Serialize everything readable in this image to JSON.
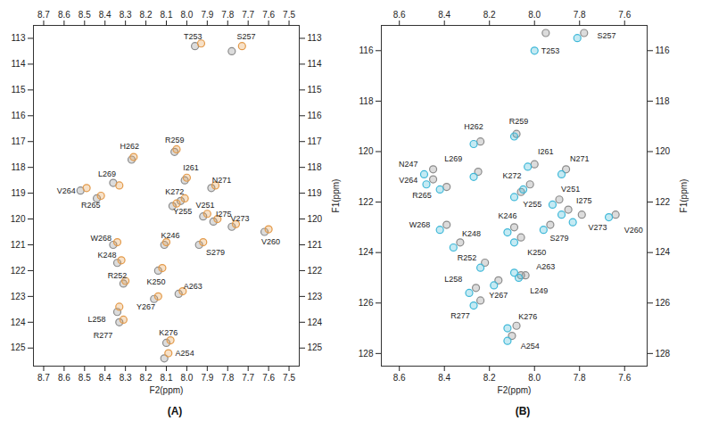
{
  "chart_data": [
    {
      "type": "scatter",
      "title": "(A)",
      "x_label": "F2(ppm)",
      "y_label": "F1(ppm)",
      "xlim": [
        8.75,
        7.45
      ],
      "xticks": [
        8.7,
        8.6,
        8.5,
        8.4,
        8.3,
        8.2,
        8.1,
        {
          "value": 8,
          "label": "8.0"
        },
        7.9,
        7.8,
        7.7,
        7.6,
        7.5
      ],
      "ylim": [
        112.5,
        125.7
      ],
      "yticks": [
        113,
        114,
        115,
        116,
        117,
        118,
        119,
        120,
        121,
        122,
        123,
        124,
        125
      ],
      "series": [
        {
          "color": "#8c8c8c",
          "x": [
            7.96,
            7.78,
            8.27,
            8.06,
            8.01,
            7.88,
            8.36,
            8.52,
            8.44,
            8.03,
            8.07,
            7.92,
            7.87,
            7.78,
            7.62,
            7.94,
            8.36,
            8.11,
            8.34,
            8.31,
            8.14,
            8.04,
            8.16,
            8.34,
            8.33,
            8.1,
            8.11
          ],
          "y": [
            113.3,
            113.5,
            117.7,
            117.4,
            118.5,
            118.8,
            118.6,
            118.9,
            119.2,
            119.3,
            119.5,
            119.9,
            120.1,
            120.3,
            120.5,
            121.0,
            121.0,
            121.0,
            121.7,
            122.5,
            122.0,
            122.9,
            123.1,
            123.6,
            124.0,
            124.8,
            125.4
          ]
        },
        {
          "color": "#e39a4a",
          "x": [
            7.93,
            7.73,
            8.26,
            8.05,
            8.0,
            7.86,
            8.33,
            8.49,
            8.42,
            8.01,
            8.05,
            7.9,
            7.85,
            7.76,
            7.6,
            7.92,
            8.34,
            8.1,
            8.32,
            8.3,
            8.12,
            8.02,
            8.14,
            8.33,
            8.31,
            8.08,
            8.09
          ],
          "y": [
            113.2,
            113.3,
            117.6,
            117.3,
            118.4,
            118.7,
            118.7,
            118.8,
            119.1,
            119.2,
            119.4,
            119.8,
            120.0,
            120.2,
            120.4,
            120.9,
            120.9,
            120.9,
            121.6,
            122.4,
            121.9,
            122.8,
            123.0,
            123.4,
            123.9,
            124.7,
            125.2
          ]
        }
      ],
      "annotations": [
        {
          "text": "T253",
          "x": 7.97,
          "y": 112.95
        },
        {
          "text": "S257",
          "x": 7.71,
          "y": 112.95
        },
        {
          "text": "H262",
          "x": 8.28,
          "y": 117.2
        },
        {
          "text": "R259",
          "x": 8.06,
          "y": 116.95
        },
        {
          "text": "I261",
          "x": 7.98,
          "y": 118.0
        },
        {
          "text": "N271",
          "x": 7.83,
          "y": 118.5
        },
        {
          "text": "L269",
          "x": 8.39,
          "y": 118.25
        },
        {
          "text": "V264",
          "x": 8.59,
          "y": 118.9
        },
        {
          "text": "R265",
          "x": 8.47,
          "y": 119.45
        },
        {
          "text": "K272",
          "x": 8.06,
          "y": 118.95
        },
        {
          "text": "Y255",
          "x": 8.02,
          "y": 119.7
        },
        {
          "text": "V251",
          "x": 7.91,
          "y": 119.45
        },
        {
          "text": "I275",
          "x": 7.82,
          "y": 119.8
        },
        {
          "text": "V273",
          "x": 7.74,
          "y": 120.0
        },
        {
          "text": "V260",
          "x": 7.59,
          "y": 120.9
        },
        {
          "text": "S279",
          "x": 7.86,
          "y": 121.3
        },
        {
          "text": "W268",
          "x": 8.42,
          "y": 120.75
        },
        {
          "text": "K246",
          "x": 8.08,
          "y": 120.65
        },
        {
          "text": "K248",
          "x": 8.39,
          "y": 121.4
        },
        {
          "text": "R252",
          "x": 8.34,
          "y": 122.2
        },
        {
          "text": "K250",
          "x": 8.15,
          "y": 122.45
        },
        {
          "text": "A263",
          "x": 7.97,
          "y": 122.6
        },
        {
          "text": "Y267",
          "x": 8.2,
          "y": 123.4
        },
        {
          "text": "L258",
          "x": 8.44,
          "y": 123.9
        },
        {
          "text": "R277",
          "x": 8.41,
          "y": 124.5
        },
        {
          "text": "K276",
          "x": 8.09,
          "y": 124.4
        },
        {
          "text": "A254",
          "x": 8.01,
          "y": 125.2
        }
      ]
    },
    {
      "type": "scatter",
      "title": "(B)",
      "x_label": "F2(ppm)",
      "y_label": "F1(ppm)",
      "xlim": [
        8.68,
        7.5
      ],
      "xticks": [
        8.6,
        8.4,
        8.2,
        {
          "value": 8,
          "label": "8.0"
        },
        7.8,
        7.6
      ],
      "ylim": [
        115,
        128.5
      ],
      "yticks": [
        116,
        118,
        120,
        122,
        124,
        126,
        128
      ],
      "series": [
        {
          "color": "#8c8c8c",
          "x": [
            7.95,
            7.78,
            8.24,
            8.08,
            8.45,
            8.25,
            8.45,
            8.39,
            8.0,
            7.86,
            8.02,
            8.06,
            7.89,
            7.85,
            7.79,
            7.64,
            8.39,
            8.09,
            8.33,
            8.06,
            7.93,
            8.22,
            8.06,
            8.04,
            8.26,
            8.16,
            8.24,
            8.08,
            8.1
          ],
          "y": [
            115.3,
            115.3,
            119.6,
            119.3,
            120.7,
            120.8,
            121.1,
            121.4,
            120.5,
            120.7,
            121.3,
            121.6,
            121.9,
            122.3,
            122.5,
            122.5,
            122.9,
            123.0,
            123.6,
            123.4,
            122.9,
            124.4,
            124.9,
            124.9,
            125.4,
            125.1,
            125.9,
            126.9,
            127.3
          ]
        },
        {
          "color": "#3fb8d8",
          "x": [
            8.0,
            7.81,
            8.27,
            8.09,
            8.49,
            8.27,
            8.48,
            8.42,
            8.03,
            7.88,
            8.05,
            8.09,
            7.92,
            7.88,
            7.83,
            7.67,
            8.42,
            8.12,
            8.36,
            8.09,
            7.96,
            8.24,
            8.09,
            8.07,
            8.29,
            8.18,
            8.27,
            8.12,
            8.12
          ],
          "y": [
            116.0,
            115.5,
            119.7,
            119.4,
            120.9,
            121.0,
            121.3,
            121.5,
            120.6,
            120.9,
            121.5,
            121.8,
            122.1,
            122.5,
            122.8,
            122.6,
            123.1,
            123.2,
            123.8,
            123.6,
            123.1,
            124.6,
            124.8,
            125.0,
            125.6,
            125.3,
            126.1,
            127.0,
            127.5
          ]
        }
      ],
      "annotations": [
        {
          "text": "T253",
          "x": 7.93,
          "y": 116.0
        },
        {
          "text": "S257",
          "x": 7.68,
          "y": 115.4
        },
        {
          "text": "H262",
          "x": 8.27,
          "y": 119.0
        },
        {
          "text": "R259",
          "x": 8.07,
          "y": 118.8
        },
        {
          "text": "N247",
          "x": 8.56,
          "y": 120.5
        },
        {
          "text": "L269",
          "x": 8.36,
          "y": 120.3
        },
        {
          "text": "V264",
          "x": 8.56,
          "y": 121.15
        },
        {
          "text": "R265",
          "x": 8.5,
          "y": 121.75
        },
        {
          "text": "I261",
          "x": 7.95,
          "y": 120.0
        },
        {
          "text": "N271",
          "x": 7.8,
          "y": 120.3
        },
        {
          "text": "K272",
          "x": 8.1,
          "y": 120.95
        },
        {
          "text": "Y255",
          "x": 8.01,
          "y": 122.1
        },
        {
          "text": "V251",
          "x": 7.84,
          "y": 121.5
        },
        {
          "text": "I275",
          "x": 7.78,
          "y": 121.95
        },
        {
          "text": "V273",
          "x": 7.72,
          "y": 123.0
        },
        {
          "text": "V260",
          "x": 7.56,
          "y": 123.1
        },
        {
          "text": "W268",
          "x": 8.51,
          "y": 122.9
        },
        {
          "text": "K246",
          "x": 8.12,
          "y": 122.55
        },
        {
          "text": "K248",
          "x": 8.28,
          "y": 123.25
        },
        {
          "text": "K250",
          "x": 7.99,
          "y": 124.0
        },
        {
          "text": "S279",
          "x": 7.89,
          "y": 123.45
        },
        {
          "text": "R252",
          "x": 8.3,
          "y": 124.2
        },
        {
          "text": "A263",
          "x": 7.95,
          "y": 124.55
        },
        {
          "text": "L249",
          "x": 7.98,
          "y": 125.5
        },
        {
          "text": "L258",
          "x": 8.36,
          "y": 125.05
        },
        {
          "text": "Y267",
          "x": 8.16,
          "y": 125.7
        },
        {
          "text": "R277",
          "x": 8.33,
          "y": 126.5
        },
        {
          "text": "K276",
          "x": 8.03,
          "y": 126.55
        },
        {
          "text": "A254",
          "x": 8.02,
          "y": 127.7
        }
      ]
    }
  ]
}
